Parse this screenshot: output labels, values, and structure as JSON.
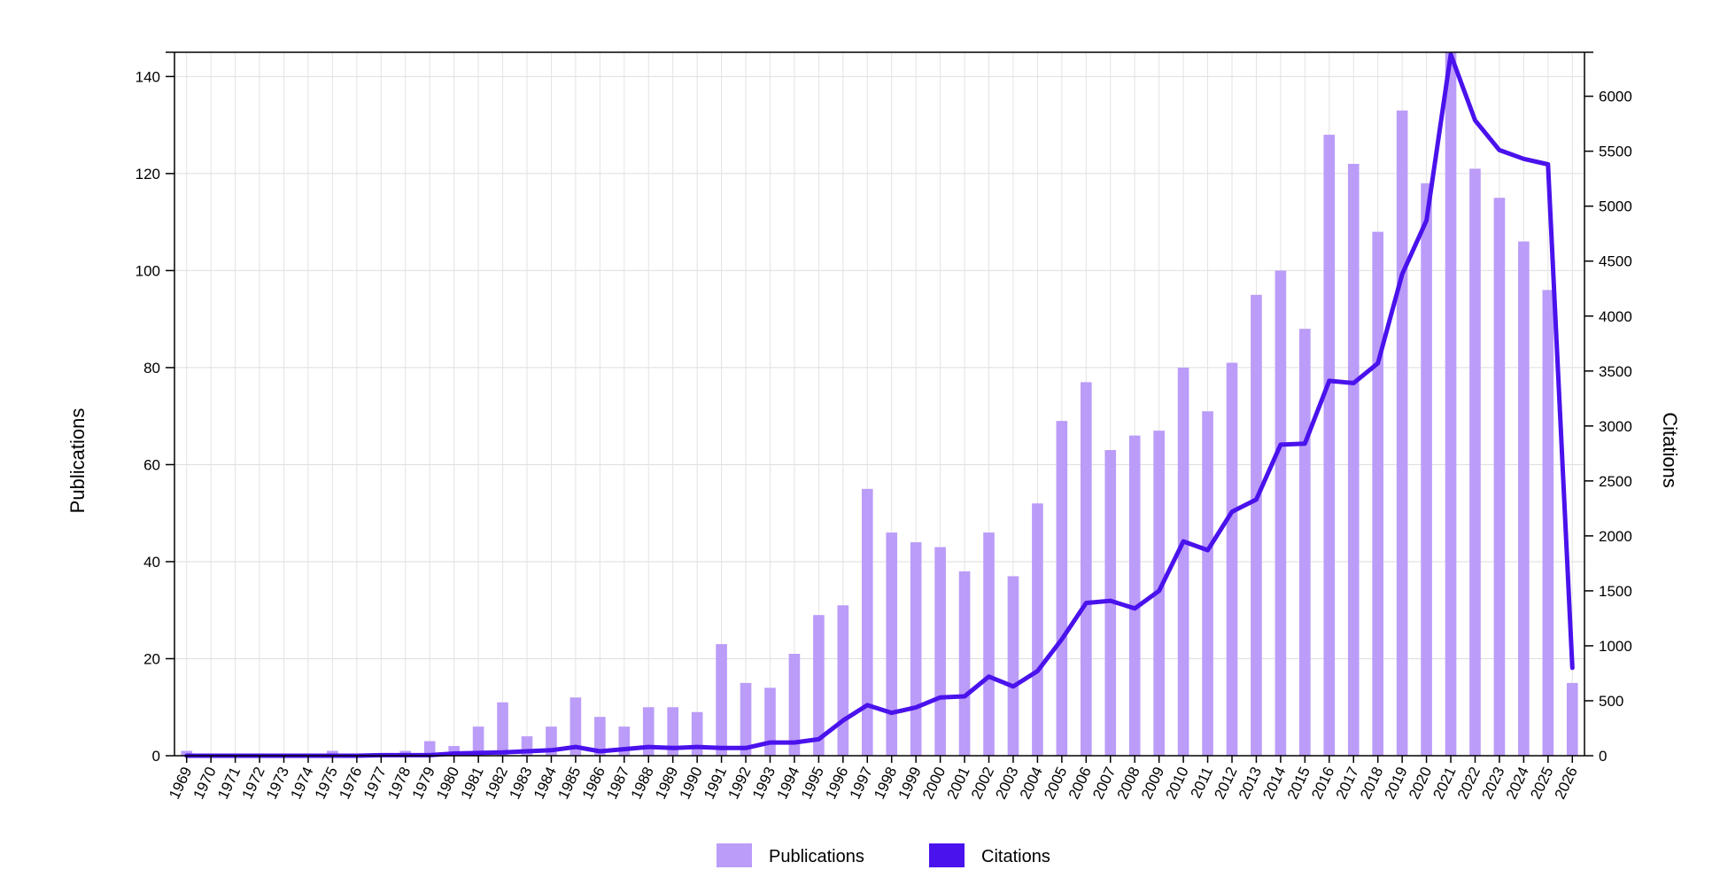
{
  "chart_data": {
    "type": "bar",
    "categories": [
      "1969",
      "1970",
      "1971",
      "1972",
      "1973",
      "1974",
      "1975",
      "1976",
      "1977",
      "1978",
      "1979",
      "1980",
      "1981",
      "1982",
      "1983",
      "1984",
      "1985",
      "1986",
      "1987",
      "1988",
      "1989",
      "1990",
      "1991",
      "1992",
      "1993",
      "1994",
      "1995",
      "1996",
      "1997",
      "1998",
      "1999",
      "2000",
      "2001",
      "2002",
      "2003",
      "2004",
      "2005",
      "2006",
      "2007",
      "2008",
      "2009",
      "2010",
      "2011",
      "2012",
      "2013",
      "2014",
      "2015",
      "2016",
      "2017",
      "2018",
      "2019",
      "2020",
      "2021",
      "2022",
      "2023",
      "2024",
      "2025",
      "2026"
    ],
    "series": [
      {
        "name": "Publications",
        "type": "bar",
        "axis": "left",
        "color": "#bb9cf8",
        "values": [
          1,
          0,
          0,
          0,
          0,
          0,
          1,
          0,
          0,
          1,
          3,
          2,
          6,
          11,
          4,
          6,
          12,
          8,
          6,
          10,
          10,
          9,
          23,
          15,
          14,
          21,
          29,
          31,
          55,
          46,
          44,
          43,
          38,
          46,
          37,
          52,
          69,
          77,
          63,
          66,
          67,
          80,
          71,
          81,
          95,
          100,
          88,
          128,
          122,
          108,
          133,
          118,
          145,
          121,
          115,
          106,
          96,
          15
        ]
      },
      {
        "name": "Citations",
        "type": "line",
        "axis": "right",
        "color": "#4a12ec",
        "values": [
          0,
          0,
          0,
          0,
          0,
          0,
          0,
          0,
          5,
          5,
          5,
          20,
          25,
          30,
          40,
          50,
          80,
          40,
          60,
          80,
          70,
          80,
          70,
          70,
          120,
          120,
          150,
          320,
          460,
          390,
          440,
          530,
          540,
          720,
          630,
          770,
          1060,
          1390,
          1410,
          1340,
          1500,
          1950,
          1870,
          2220,
          2330,
          2830,
          2840,
          3410,
          3390,
          3570,
          4380,
          4870,
          6380,
          5780,
          5510,
          5430,
          5380,
          800
        ]
      }
    ],
    "xlabel": "",
    "ylabel": "Publications",
    "y2label": "Citations",
    "ylim": [
      0,
      145
    ],
    "y2lim": [
      0,
      6400
    ],
    "yticks": [
      0,
      20,
      40,
      60,
      80,
      100,
      120,
      140
    ],
    "y2ticks": [
      0,
      500,
      1000,
      1500,
      2000,
      2500,
      3000,
      3500,
      4000,
      4500,
      5000,
      5500,
      6000
    ],
    "grid": true,
    "legend_position": "bottom-center",
    "legend": [
      "Publications",
      "Citations"
    ]
  }
}
